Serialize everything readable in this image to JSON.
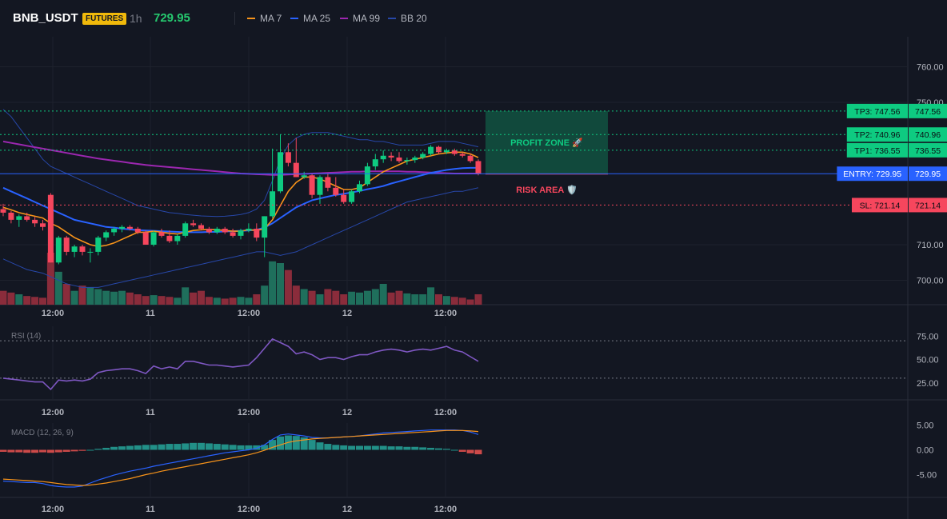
{
  "header": {
    "symbol": "BNB_USDT",
    "badge": "FUTURES",
    "timeframe": "1h",
    "last_price": "729.95",
    "legend": [
      {
        "name": "MA 7",
        "color": "#f7931a"
      },
      {
        "name": "MA 25",
        "color": "#2962ff"
      },
      {
        "name": "MA 99",
        "color": "#9c27b0"
      },
      {
        "name": "BB 20",
        "color": "#2747a8"
      }
    ]
  },
  "colors": {
    "up": "#0ecb81",
    "down": "#f6465d",
    "bg": "#131722",
    "grid": "#1e222d"
  },
  "chart_data": [
    {
      "type": "candlestick",
      "name": "price",
      "x_ticks": [
        "12:00",
        "11",
        "12:00",
        "12",
        "12:00"
      ],
      "y_ticks": [
        "760.00",
        "750.00",
        "710.00",
        "700.00"
      ],
      "ylim": [
        693,
        770
      ],
      "candles": [
        [
          720,
          721.5,
          718,
          719
        ],
        [
          719,
          719.5,
          716,
          717
        ],
        [
          717,
          718.5,
          715,
          718
        ],
        [
          718,
          719,
          716.5,
          717
        ],
        [
          717,
          717.8,
          715,
          716
        ],
        [
          716,
          717,
          714,
          715
        ],
        [
          724,
          724.5,
          705,
          705
        ],
        [
          705,
          712.5,
          704.5,
          712
        ],
        [
          712,
          712.5,
          707,
          708
        ],
        [
          708,
          710,
          706.5,
          709.5
        ],
        [
          709.5,
          710,
          707,
          708
        ],
        [
          708,
          709,
          705,
          708
        ],
        [
          708,
          712.5,
          707,
          712
        ],
        [
          712,
          714,
          711,
          713.5
        ],
        [
          713.5,
          715,
          712.5,
          714.5
        ],
        [
          714.5,
          715.5,
          713.5,
          715
        ],
        [
          715,
          715.5,
          714,
          714.5
        ],
        [
          714.5,
          715,
          713,
          713.5
        ],
        [
          713.5,
          714,
          710,
          710
        ],
        [
          710,
          714,
          709.5,
          713.5
        ],
        [
          713.5,
          714.5,
          712,
          712.5
        ],
        [
          712.5,
          714,
          710.5,
          711
        ],
        [
          711,
          713,
          710,
          712.5
        ],
        [
          712.5,
          716.5,
          712,
          716
        ],
        [
          716,
          717,
          715,
          715.5
        ],
        [
          715.5,
          716,
          714,
          714.5
        ],
        [
          714.5,
          715,
          713,
          713.5
        ],
        [
          713.5,
          715,
          713,
          714.5
        ],
        [
          714.5,
          715,
          713,
          713.5
        ],
        [
          713.5,
          714.5,
          712,
          712.5
        ],
        [
          712.5,
          714.5,
          711.5,
          714
        ],
        [
          714,
          716,
          713.5,
          714.5
        ],
        [
          714.5,
          716,
          711,
          712
        ],
        [
          712,
          718,
          706.5,
          718
        ],
        [
          718,
          737,
          717.5,
          725
        ],
        [
          725,
          741,
          724.5,
          736
        ],
        [
          736,
          738.5,
          732,
          733
        ],
        [
          733,
          740,
          729,
          729
        ],
        [
          729,
          730.5,
          728.5,
          729.5
        ],
        [
          729.5,
          730,
          723,
          724
        ],
        [
          724,
          729.5,
          721.5,
          729
        ],
        [
          729,
          730,
          725,
          726
        ],
        [
          726,
          729,
          723.5,
          724
        ],
        [
          724,
          725.5,
          721.5,
          722
        ],
        [
          722,
          725.5,
          721.5,
          725
        ],
        [
          725,
          728,
          724.5,
          727
        ],
        [
          727,
          733,
          726.5,
          732
        ],
        [
          732,
          735.5,
          731,
          734
        ],
        [
          734,
          736.5,
          733,
          735
        ],
        [
          735,
          736,
          733.5,
          734.5
        ],
        [
          734.5,
          736,
          733,
          733.5
        ],
        [
          733.5,
          734.5,
          732.5,
          733.8
        ],
        [
          733.8,
          735,
          733,
          734.5
        ],
        [
          734.5,
          736,
          734,
          735.5
        ],
        [
          735.5,
          738,
          735,
          737.5
        ],
        [
          737.5,
          737.8,
          735.5,
          736
        ],
        [
          736,
          737,
          735.5,
          736.5
        ],
        [
          736.5,
          737,
          735,
          735.5
        ],
        [
          735.5,
          736,
          734.5,
          735
        ],
        [
          735,
          735.5,
          733,
          733.5
        ],
        [
          733.5,
          734,
          729.5,
          730
        ]
      ],
      "volume": [
        16,
        14,
        12,
        10,
        9,
        8,
        60,
        38,
        24,
        16,
        22,
        20,
        18,
        16,
        15,
        16,
        14,
        12,
        10,
        11,
        10,
        9,
        8,
        20,
        14,
        16,
        9,
        8,
        7,
        8,
        9,
        8,
        12,
        22,
        50,
        48,
        40,
        22,
        18,
        16,
        12,
        18,
        16,
        12,
        15,
        14,
        16,
        18,
        24,
        14,
        16,
        13,
        12,
        12,
        20,
        12,
        10,
        9,
        8,
        6,
        12
      ],
      "ma7": [
        720.5,
        719.8,
        719,
        718.5,
        718,
        717.5,
        716,
        715,
        713.5,
        712,
        711,
        710,
        709.5,
        709.8,
        710.5,
        711.5,
        712.5,
        713.5,
        713.5,
        713.8,
        713.5,
        713.2,
        713,
        713.5,
        714,
        714.2,
        714.3,
        714.2,
        714,
        713.8,
        713.8,
        714.2,
        714,
        714.5,
        717,
        721,
        725,
        727.5,
        729,
        729,
        728.5,
        727.5,
        726.5,
        725.5,
        725.5,
        726,
        727.5,
        729,
        730.5,
        731.5,
        732.5,
        733.5,
        734,
        734.5,
        735,
        735.5,
        735.8,
        736,
        736,
        735.5,
        734.5
      ],
      "ma25": [
        726,
        725,
        724,
        723,
        722,
        721,
        720,
        719,
        718,
        717,
        716.5,
        716,
        715.5,
        715,
        714.8,
        714.5,
        714.3,
        714.1,
        714,
        713.9,
        713.8,
        713.7,
        713.6,
        713.5,
        713.5,
        713.5,
        713.6,
        713.6,
        713.7,
        713.8,
        713.9,
        714,
        714.2,
        714.8,
        716,
        717.5,
        719,
        720.5,
        721.5,
        722.5,
        723,
        723.5,
        724,
        724.3,
        724.7,
        725.1,
        725.6,
        726,
        726.5,
        727.2,
        727.8,
        728.4,
        729,
        729.6,
        730.2,
        730.6,
        731,
        731.3,
        731.5,
        731.6,
        731.6
      ],
      "ma99": [
        739,
        738.6,
        738.2,
        737.8,
        737.4,
        737,
        736.6,
        736.2,
        735.8,
        735.4,
        735,
        734.6,
        734.2,
        733.9,
        733.6,
        733.3,
        733,
        732.7,
        732.4,
        732.2,
        732,
        731.8,
        731.6,
        731.4,
        731.2,
        731,
        730.8,
        730.6,
        730.4,
        730.2,
        730,
        729.9,
        729.8,
        729.7,
        729.6,
        729.6,
        729.7,
        729.8,
        729.9,
        730,
        730.1,
        730.2,
        730.3,
        730.4,
        730.5,
        730.5,
        730.6,
        730.6,
        730.6,
        730.6,
        730.6,
        730.5,
        730.5,
        730.4,
        730.3,
        730.2,
        730.1,
        730,
        730,
        730,
        730
      ],
      "bb_upper": [
        748,
        746,
        743,
        740,
        737,
        734,
        732,
        731,
        730,
        729,
        728,
        727,
        726,
        725,
        724,
        723,
        722,
        721,
        720.5,
        720,
        719.5,
        719,
        718.8,
        718.5,
        718.3,
        718.1,
        718,
        717.9,
        718,
        718.2,
        718.5,
        719,
        720,
        722.5,
        728,
        734,
        738,
        740,
        741,
        741.5,
        741.5,
        741.5,
        741,
        740.5,
        740,
        739.5,
        739.5,
        739,
        739,
        738.5,
        738,
        738,
        738,
        738,
        738.5,
        739,
        739,
        739,
        738.5,
        738,
        737.5
      ],
      "bb_lower": [
        706,
        705,
        704,
        703,
        702.5,
        702,
        701,
        700,
        699,
        698.5,
        698,
        698,
        698,
        698.5,
        699,
        699.5,
        700,
        700.5,
        701,
        701.5,
        702,
        702.5,
        703,
        703.5,
        704,
        704.5,
        705,
        705.5,
        706,
        706.5,
        707,
        707.5,
        708,
        708,
        707.5,
        707,
        707.5,
        708,
        709,
        710,
        711,
        712,
        713,
        714,
        715,
        716,
        717,
        718,
        719,
        720,
        721,
        722,
        722.5,
        723,
        723.5,
        724,
        724.5,
        725,
        725,
        725.5,
        726
      ],
      "levels": [
        {
          "label": "TP3: 747.56",
          "axis_label": "747.56",
          "value": 747.56,
          "color": "#0ecb81"
        },
        {
          "label": "TP2: 740.96",
          "axis_label": "740.96",
          "value": 740.96,
          "color": "#0ecb81"
        },
        {
          "label": "TP1: 736.55",
          "axis_label": "736.55",
          "value": 736.55,
          "color": "#0ecb81"
        },
        {
          "label": "ENTRY: 729.95",
          "axis_label": "729.95",
          "value": 729.95,
          "color": "#2962ff"
        },
        {
          "label": "SL: 721.14",
          "axis_label": "721.14",
          "value": 721.14,
          "color": "#f6465d"
        }
      ],
      "zones": {
        "profit": {
          "label": "PROFIT ZONE 🚀",
          "from": 729.95,
          "to": 747.56,
          "color": "#0ecb81"
        },
        "risk": {
          "label": "RISK AREA 🛡️",
          "from": 721.14,
          "to": 729.95,
          "color": "#f6465d"
        }
      }
    },
    {
      "type": "line",
      "name": "RSI (14)",
      "label": "RSI (14)",
      "y_ticks": [
        "75.00",
        "50.00",
        "25.00"
      ],
      "ylim": [
        10,
        85
      ],
      "levels": [
        70,
        30
      ],
      "color": "#7e57c2",
      "values": [
        30,
        29,
        28,
        27,
        26,
        26,
        18,
        28,
        27,
        28,
        27,
        29,
        36,
        38,
        39,
        40,
        40,
        38,
        35,
        43,
        40,
        42,
        40,
        48,
        48,
        46,
        44,
        44,
        43,
        42,
        43,
        44,
        52,
        62,
        72,
        68,
        64,
        56,
        58,
        55,
        50,
        52,
        52,
        50,
        53,
        55,
        55,
        58,
        60,
        61,
        60,
        58,
        60,
        61,
        60,
        62,
        64,
        60,
        58,
        53,
        48
      ]
    },
    {
      "type": "bar+line",
      "name": "MACD (12, 26, 9)",
      "label": "MACD (12, 26, 9)",
      "y_ticks": [
        "5.00",
        "0.00",
        "-5.00"
      ],
      "ylim": [
        -9,
        6
      ],
      "histogram": [
        -0.4,
        -0.5,
        -0.5,
        -0.6,
        -0.6,
        -0.5,
        -0.6,
        -0.5,
        -0.4,
        -0.3,
        -0.2,
        0.0,
        0.2,
        0.4,
        0.6,
        0.7,
        0.8,
        0.9,
        1.0,
        1.0,
        1.1,
        1.2,
        1.2,
        1.3,
        1.4,
        1.4,
        1.3,
        1.2,
        1.1,
        1.0,
        0.9,
        0.9,
        0.9,
        1.0,
        2.0,
        2.7,
        2.9,
        2.8,
        2.5,
        2.0,
        1.5,
        1.2,
        1.0,
        0.9,
        0.8,
        0.8,
        0.8,
        0.8,
        0.8,
        0.7,
        0.7,
        0.6,
        0.6,
        0.5,
        0.4,
        0.3,
        0.2,
        0.0,
        -0.4,
        -0.7,
        -0.9
      ],
      "macd": [
        -6.3,
        -6.4,
        -6.5,
        -6.6,
        -6.6,
        -6.8,
        -7.2,
        -7.4,
        -7.5,
        -7.5,
        -7.3,
        -6.7,
        -6.1,
        -5.6,
        -5.1,
        -4.7,
        -4.3,
        -4.0,
        -3.7,
        -3.3,
        -3.0,
        -2.7,
        -2.4,
        -2.1,
        -1.8,
        -1.5,
        -1.2,
        -0.9,
        -0.6,
        -0.4,
        -0.2,
        0.0,
        0.3,
        1.0,
        2.1,
        3.0,
        3.2,
        3.0,
        2.8,
        2.5,
        2.4,
        2.4,
        2.5,
        2.6,
        2.7,
        2.8,
        3.0,
        3.2,
        3.4,
        3.5,
        3.6,
        3.7,
        3.8,
        3.9,
        4.0,
        4.0,
        4.0,
        4.0,
        3.9,
        3.6,
        3.1
      ],
      "signal": [
        -5.9,
        -6.0,
        -6.1,
        -6.2,
        -6.3,
        -6.4,
        -6.6,
        -6.8,
        -7.0,
        -7.1,
        -7.2,
        -7.1,
        -6.9,
        -6.7,
        -6.4,
        -6.1,
        -5.8,
        -5.4,
        -5.0,
        -4.7,
        -4.3,
        -4.0,
        -3.7,
        -3.4,
        -3.1,
        -2.8,
        -2.5,
        -2.2,
        -1.9,
        -1.6,
        -1.3,
        -1.0,
        -0.6,
        -0.1,
        0.5,
        1.0,
        1.5,
        1.8,
        2.0,
        2.2,
        2.3,
        2.4,
        2.5,
        2.6,
        2.7,
        2.8,
        2.9,
        3.0,
        3.1,
        3.2,
        3.3,
        3.4,
        3.5,
        3.6,
        3.7,
        3.8,
        3.9,
        3.9,
        3.9,
        3.8,
        3.7
      ],
      "macd_color": "#2962ff",
      "signal_color": "#f7931a"
    }
  ]
}
